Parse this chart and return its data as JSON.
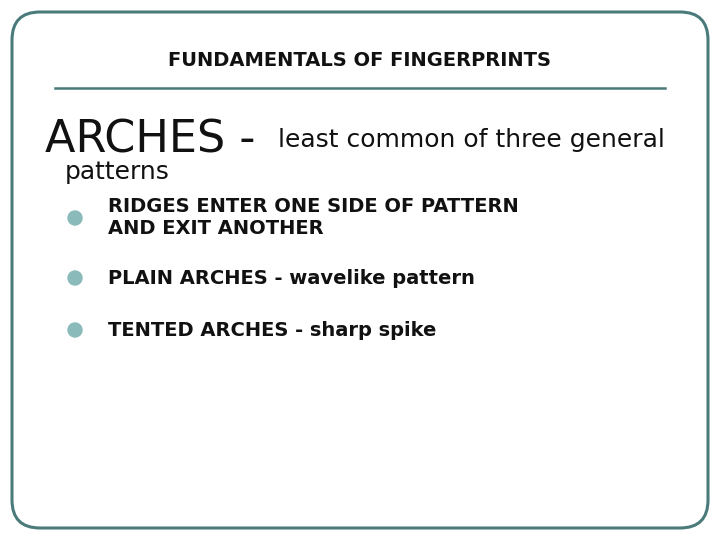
{
  "title": "FUNDAMENTALS OF FINGERPRINTS",
  "title_fontsize": 14,
  "title_fontweight": "bold",
  "text_color": "#111111",
  "background_color": "#ffffff",
  "border_color": "#4a7a7a",
  "line_color": "#4a7a7a",
  "bullet_color": "#8ababa",
  "arches_large_fontsize": 32,
  "arches_small_fontsize": 18,
  "patterns_fontsize": 18,
  "bullet_fontsize": 14,
  "font_family": "DejaVu Sans",
  "bullets": [
    [
      "RIDGES ENTER ONE SIDE OF PATTERN",
      "AND EXIT ANOTHER"
    ],
    [
      "PLAIN ARCHES - wavelike pattern"
    ],
    [
      "TENTED ARCHES - sharp spike"
    ]
  ]
}
